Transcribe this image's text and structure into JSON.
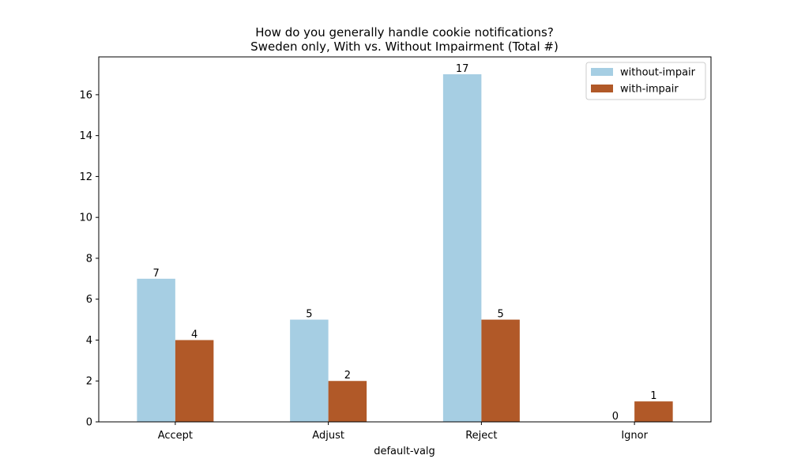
{
  "chart_data": {
    "type": "bar",
    "title": [
      "How do you generally handle cookie notifications?",
      "Sweden only, With vs. Without Impairment (Total #)"
    ],
    "xlabel": "default-valg",
    "ylabel": "",
    "categories": [
      "Accept",
      "Adjust",
      "Reject",
      "Ignor"
    ],
    "series": [
      {
        "name": "without-impair",
        "values": [
          7,
          5,
          17,
          0
        ],
        "color": "#a6cee3"
      },
      {
        "name": "with-impair",
        "values": [
          4,
          2,
          5,
          1
        ],
        "color": "#b15928"
      }
    ],
    "ylim": [
      0,
      17.85
    ],
    "yticks": [
      0,
      2,
      4,
      6,
      8,
      10,
      12,
      14,
      16
    ],
    "grid": false,
    "legend_position": "top-right"
  }
}
